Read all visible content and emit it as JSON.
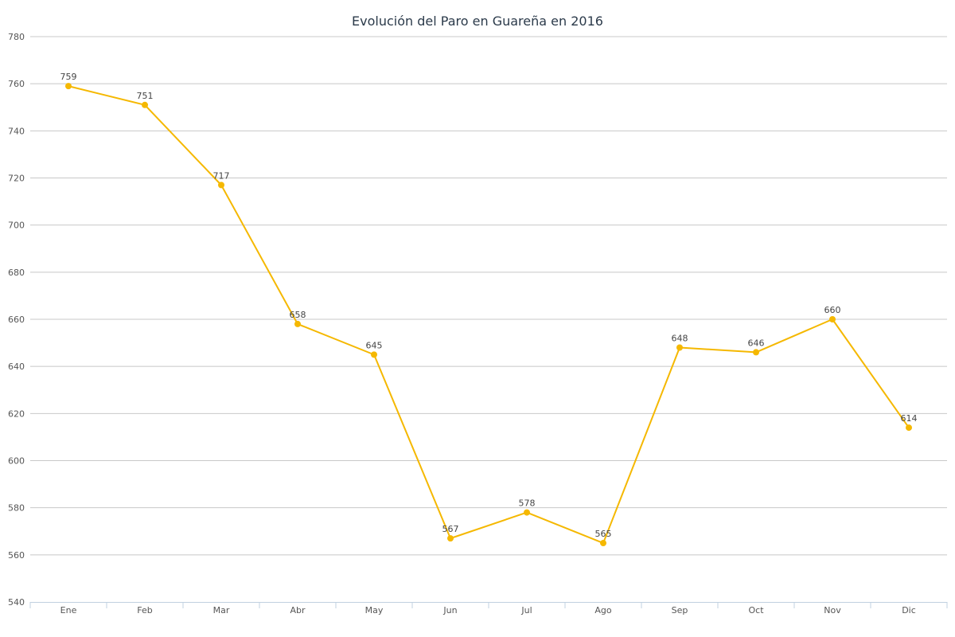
{
  "chart_data": {
    "type": "line",
    "title": "Evolución del Paro en Guareña en 2016",
    "xlabel": "",
    "ylabel": "",
    "categories": [
      "Ene",
      "Feb",
      "Mar",
      "Abr",
      "May",
      "Jun",
      "Jul",
      "Ago",
      "Sep",
      "Oct",
      "Nov",
      "Dic"
    ],
    "series": [
      {
        "values": [
          759,
          751,
          717,
          658,
          645,
          567,
          578,
          565,
          648,
          646,
          660,
          614
        ],
        "color": "#f5b800"
      }
    ],
    "yticks": [
      540,
      560,
      580,
      600,
      620,
      640,
      660,
      680,
      700,
      720,
      740,
      760,
      780
    ],
    "ylim": [
      540,
      780
    ],
    "grid": true,
    "legend": "none",
    "data_labels": true
  },
  "colors": {
    "line": "#f5b800",
    "grid": "#c8c8c8",
    "axis": "#c0d0e0",
    "title": "#2b3a4a",
    "tick_text": "#555555"
  }
}
